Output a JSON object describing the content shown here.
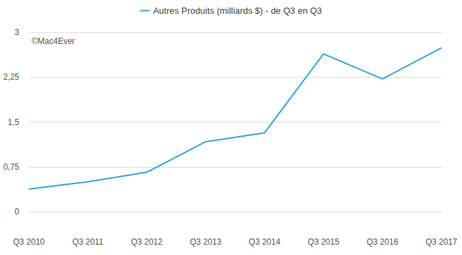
{
  "chart_data": {
    "type": "line",
    "annotation": "©Mac4Ever",
    "categories": [
      "Q3 2010",
      "Q3 2011",
      "Q3 2012",
      "Q3 2013",
      "Q3 2014",
      "Q3 2015",
      "Q3 2016",
      "Q3 2017"
    ],
    "series": [
      {
        "name": "Autres Produits (milliards $) - de Q3 en Q3",
        "color": "#2fa4e0",
        "values": [
          0.38,
          0.5,
          0.66,
          1.17,
          1.32,
          2.64,
          2.22,
          2.74
        ]
      }
    ],
    "ylim": [
      0,
      3
    ],
    "yticks": [
      0,
      {
        "value": 0.75,
        "label": "0,75"
      },
      {
        "value": 1.5,
        "label": "1,5"
      },
      {
        "value": 2.25,
        "label": "2,25"
      },
      3
    ],
    "grid": true,
    "legend": "top"
  }
}
